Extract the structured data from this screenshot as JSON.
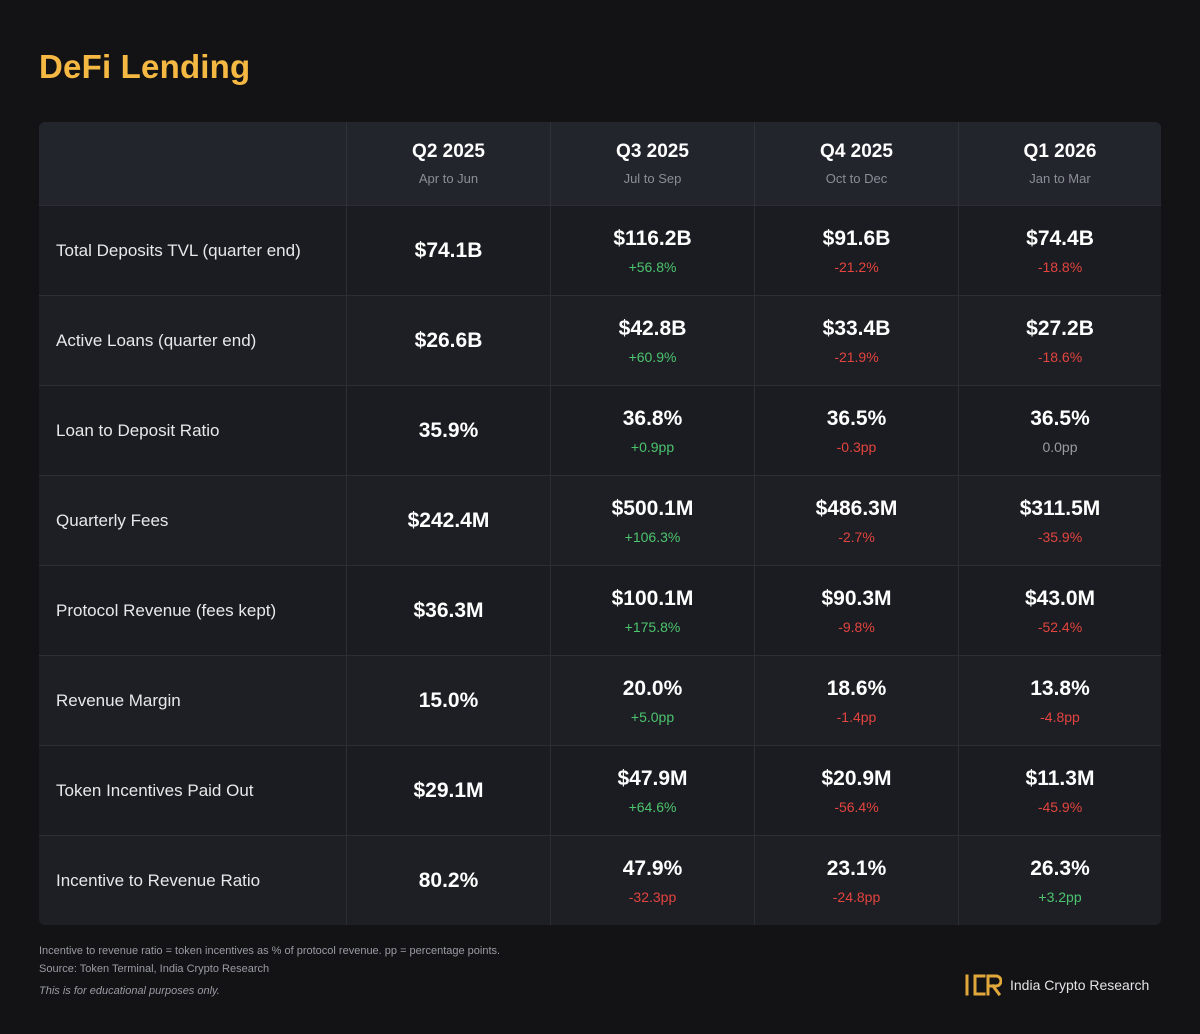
{
  "title": "DeFi Lending",
  "columns": [
    {
      "quarter": "Q2 2025",
      "range": "Apr to Jun"
    },
    {
      "quarter": "Q3 2025",
      "range": "Jul to Sep"
    },
    {
      "quarter": "Q4 2025",
      "range": "Oct to Dec"
    },
    {
      "quarter": "Q1 2026",
      "range": "Jan to Mar"
    }
  ],
  "rows": [
    {
      "metric": "Total Deposits TVL (quarter end)",
      "cells": [
        {
          "value": "$74.1B",
          "change": "",
          "dir": "neu"
        },
        {
          "value": "$116.2B",
          "change": "+56.8%",
          "dir": "pos"
        },
        {
          "value": "$91.6B",
          "change": "-21.2%",
          "dir": "neg"
        },
        {
          "value": "$74.4B",
          "change": "-18.8%",
          "dir": "neg"
        }
      ]
    },
    {
      "metric": "Active Loans (quarter end)",
      "cells": [
        {
          "value": "$26.6B",
          "change": "",
          "dir": "neu"
        },
        {
          "value": "$42.8B",
          "change": "+60.9%",
          "dir": "pos"
        },
        {
          "value": "$33.4B",
          "change": "-21.9%",
          "dir": "neg"
        },
        {
          "value": "$27.2B",
          "change": "-18.6%",
          "dir": "neg"
        }
      ]
    },
    {
      "metric": "Loan to Deposit Ratio",
      "cells": [
        {
          "value": "35.9%",
          "change": "",
          "dir": "neu"
        },
        {
          "value": "36.8%",
          "change": "+0.9pp",
          "dir": "pos"
        },
        {
          "value": "36.5%",
          "change": "-0.3pp",
          "dir": "neg"
        },
        {
          "value": "36.5%",
          "change": "0.0pp",
          "dir": "neu"
        }
      ]
    },
    {
      "metric": "Quarterly Fees",
      "cells": [
        {
          "value": "$242.4M",
          "change": "",
          "dir": "neu"
        },
        {
          "value": "$500.1M",
          "change": "+106.3%",
          "dir": "pos"
        },
        {
          "value": "$486.3M",
          "change": "-2.7%",
          "dir": "neg"
        },
        {
          "value": "$311.5M",
          "change": "-35.9%",
          "dir": "neg"
        }
      ]
    },
    {
      "metric": "Protocol Revenue (fees kept)",
      "cells": [
        {
          "value": "$36.3M",
          "change": "",
          "dir": "neu"
        },
        {
          "value": "$100.1M",
          "change": "+175.8%",
          "dir": "pos"
        },
        {
          "value": "$90.3M",
          "change": "-9.8%",
          "dir": "neg"
        },
        {
          "value": "$43.0M",
          "change": "-52.4%",
          "dir": "neg"
        }
      ]
    },
    {
      "metric": "Revenue Margin",
      "cells": [
        {
          "value": "15.0%",
          "change": "",
          "dir": "neu"
        },
        {
          "value": "20.0%",
          "change": "+5.0pp",
          "dir": "pos"
        },
        {
          "value": "18.6%",
          "change": "-1.4pp",
          "dir": "neg"
        },
        {
          "value": "13.8%",
          "change": "-4.8pp",
          "dir": "neg"
        }
      ]
    },
    {
      "metric": "Token Incentives Paid Out",
      "cells": [
        {
          "value": "$29.1M",
          "change": "",
          "dir": "neu"
        },
        {
          "value": "$47.9M",
          "change": "+64.6%",
          "dir": "pos"
        },
        {
          "value": "$20.9M",
          "change": "-56.4%",
          "dir": "neg"
        },
        {
          "value": "$11.3M",
          "change": "-45.9%",
          "dir": "neg"
        }
      ]
    },
    {
      "metric": "Incentive to Revenue Ratio",
      "cells": [
        {
          "value": "80.2%",
          "change": "",
          "dir": "neu"
        },
        {
          "value": "47.9%",
          "change": "-32.3pp",
          "dir": "neg"
        },
        {
          "value": "23.1%",
          "change": "-24.8pp",
          "dir": "neg"
        },
        {
          "value": "26.3%",
          "change": "+3.2pp",
          "dir": "pos"
        }
      ]
    }
  ],
  "footnotes": {
    "definition": "Incentive to revenue ratio = token incentives as % of protocol revenue. pp = percentage points.",
    "source": "Source: Token Terminal, India Crypto Research",
    "disclaimer": "This is for educational purposes only."
  },
  "brand": {
    "logo_text": "ICR",
    "name": "India Crypto Research",
    "logo_color": "#e0a73a"
  },
  "colors": {
    "title": "#f5b842",
    "positive": "#4cc46e",
    "negative": "#e3443f",
    "neutral": "#9a9ca3",
    "background": "#131316"
  },
  "chart_data": {
    "type": "table",
    "title": "DeFi Lending",
    "columns": [
      "Q2 2025",
      "Q3 2025",
      "Q4 2025",
      "Q1 2026"
    ],
    "column_subtitles": [
      "Apr to Jun",
      "Jul to Sep",
      "Oct to Dec",
      "Jan to Mar"
    ],
    "rows": [
      {
        "metric": "Total Deposits TVL (quarter end)",
        "values": [
          "$74.1B",
          "$116.2B",
          "$91.6B",
          "$74.4B"
        ],
        "changes": [
          "",
          "+56.8%",
          "-21.2%",
          "-18.8%"
        ]
      },
      {
        "metric": "Active Loans (quarter end)",
        "values": [
          "$26.6B",
          "$42.8B",
          "$33.4B",
          "$27.2B"
        ],
        "changes": [
          "",
          "+60.9%",
          "-21.9%",
          "-18.6%"
        ]
      },
      {
        "metric": "Loan to Deposit Ratio",
        "values": [
          "35.9%",
          "36.8%",
          "36.5%",
          "36.5%"
        ],
        "changes": [
          "",
          "+0.9pp",
          "-0.3pp",
          "0.0pp"
        ]
      },
      {
        "metric": "Quarterly Fees",
        "values": [
          "$242.4M",
          "$500.1M",
          "$486.3M",
          "$311.5M"
        ],
        "changes": [
          "",
          "+106.3%",
          "-2.7%",
          "-35.9%"
        ]
      },
      {
        "metric": "Protocol Revenue (fees kept)",
        "values": [
          "$36.3M",
          "$100.1M",
          "$90.3M",
          "$43.0M"
        ],
        "changes": [
          "",
          "+175.8%",
          "-9.8%",
          "-52.4%"
        ]
      },
      {
        "metric": "Revenue Margin",
        "values": [
          "15.0%",
          "20.0%",
          "18.6%",
          "13.8%"
        ],
        "changes": [
          "",
          "+5.0pp",
          "-1.4pp",
          "-4.8pp"
        ]
      },
      {
        "metric": "Token Incentives Paid Out",
        "values": [
          "$29.1M",
          "$47.9M",
          "$20.9M",
          "$11.3M"
        ],
        "changes": [
          "",
          "+64.6%",
          "-56.4%",
          "-45.9%"
        ]
      },
      {
        "metric": "Incentive to Revenue Ratio",
        "values": [
          "80.2%",
          "47.9%",
          "23.1%",
          "26.3%"
        ],
        "changes": [
          "",
          "-32.3pp",
          "-24.8pp",
          "+3.2pp"
        ]
      }
    ]
  }
}
